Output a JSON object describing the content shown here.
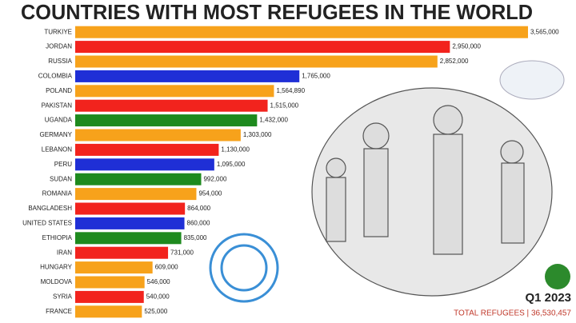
{
  "chart_data": {
    "type": "bar",
    "orientation": "horizontal",
    "title": "COUNTRIES WITH MOST REFUGEES IN THE WORLD",
    "categories": [
      "TURKIYE",
      "JORDAN",
      "RUSSIA",
      "COLOMBIA",
      "POLAND",
      "PAKISTAN",
      "UGANDA",
      "GERMANY",
      "LEBANON",
      "PERU",
      "SUDAN",
      "ROMANIA",
      "BANGLADESH",
      "UNITED STATES",
      "ETHIOPIA",
      "IRAN",
      "HUNGARY",
      "MOLDOVA",
      "SYRIA",
      "FRANCE"
    ],
    "values": [
      3565000,
      2950000,
      2852000,
      1765000,
      1564890,
      1515000,
      1432000,
      1303000,
      1130000,
      1095000,
      992000,
      954000,
      864000,
      860000,
      835000,
      731000,
      609000,
      546000,
      540000,
      525000
    ],
    "value_labels": [
      "3,565,000",
      "2,950,000",
      "2,852,000",
      "1,765,000",
      "1,564,890",
      "1,515,000",
      "1,432,000",
      "1,303,000",
      "1,130,000",
      "1,095,000",
      "992,000",
      "954,000",
      "864,000",
      "860,000",
      "835,000",
      "731,000",
      "609,000",
      "546,000",
      "540,000",
      "525,000"
    ],
    "colors": [
      "#f7a21b",
      "#f2231d",
      "#f7a21b",
      "#1f2fd6",
      "#f7a21b",
      "#f2231d",
      "#1e8a1e",
      "#f7a21b",
      "#f2231d",
      "#1f2fd6",
      "#1e8a1e",
      "#f7a21b",
      "#f2231d",
      "#1f2fd6",
      "#1e8a1e",
      "#f2231d",
      "#f7a21b",
      "#f7a21b",
      "#f2231d",
      "#f7a21b"
    ],
    "period": "Q1 2023",
    "total_label": "TOTAL REFUGEES | 36,530,457"
  }
}
